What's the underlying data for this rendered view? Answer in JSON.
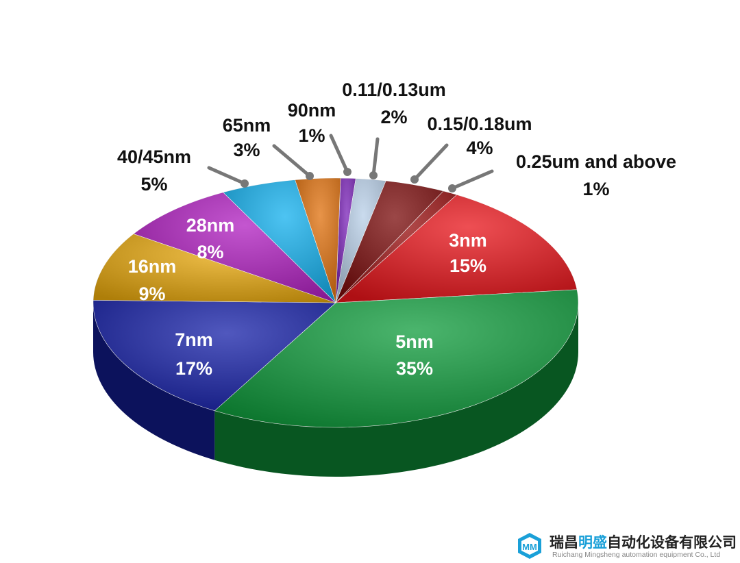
{
  "chart_data": {
    "type": "pie",
    "style": "3d",
    "title": "",
    "slices": [
      {
        "label": "90nm",
        "value": 1,
        "value_label": "1%",
        "color": "#7a22b8",
        "label_position": "outside"
      },
      {
        "label": "0.11/0.13um",
        "value": 2,
        "value_label": "2%",
        "color": "#b8cfe8",
        "label_position": "outside"
      },
      {
        "label": "0.15/0.18um",
        "value": 4,
        "value_label": "4%",
        "color": "#7a0a0a",
        "label_position": "outside"
      },
      {
        "label": "0.25um and above",
        "value": 1,
        "value_label": "1%",
        "color": "#9a1010",
        "label_position": "outside"
      },
      {
        "label": "3nm",
        "value": 15,
        "value_label": "15%",
        "color": "#e8141a",
        "label_position": "inside"
      },
      {
        "label": "5nm",
        "value": 35,
        "value_label": "35%",
        "color": "#0f9c3c",
        "label_position": "inside"
      },
      {
        "label": "7nm",
        "value": 17,
        "value_label": "17%",
        "color": "#1620a8",
        "label_position": "inside"
      },
      {
        "label": "16nm",
        "value": 9,
        "value_label": "9%",
        "color": "#e8a80c",
        "label_position": "inside"
      },
      {
        "label": "28nm",
        "value": 8,
        "value_label": "8%",
        "color": "#b01ec0",
        "label_position": "inside"
      },
      {
        "label": "40/45nm",
        "value": 5,
        "value_label": "5%",
        "color": "#12b0ee",
        "label_position": "outside"
      },
      {
        "label": "65nm",
        "value": 3,
        "value_label": "3%",
        "color": "#e0700c",
        "label_position": "outside"
      }
    ]
  },
  "watermark": {
    "company_cn_a": "瑞昌",
    "company_cn_b": "明盛",
    "company_cn_c": "自动化设备有限公司",
    "company_en": "Ruichang Mingsheng automation equipment Co., Ltd",
    "accent": "#1aa0d8"
  }
}
